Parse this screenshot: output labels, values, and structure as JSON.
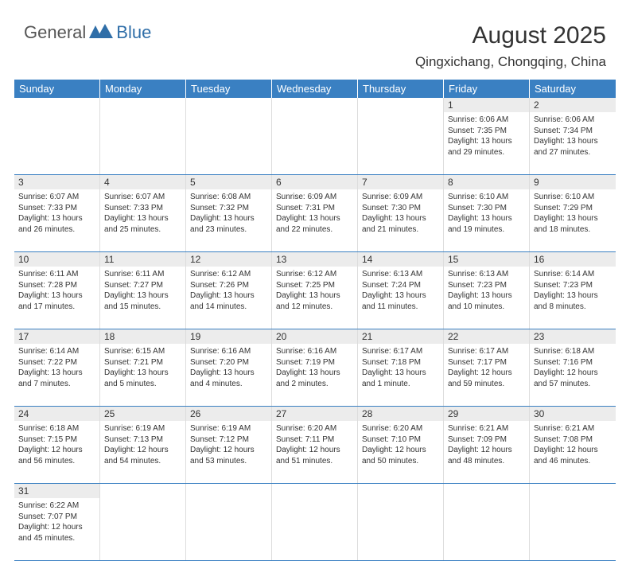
{
  "logo": {
    "general": "General",
    "blue": "Blue"
  },
  "colors": {
    "header_bg": "#3a80c2",
    "header_text": "#ffffff",
    "daynum_bg": "#ececec",
    "cell_text": "#333333",
    "divider": "#dddddd",
    "week_divider": "#3a80c2",
    "logo_general": "#555555",
    "logo_blue": "#2f6ea8"
  },
  "title": "August 2025",
  "location": "Qingxichang, Chongqing, China",
  "day_headers": [
    "Sunday",
    "Monday",
    "Tuesday",
    "Wednesday",
    "Thursday",
    "Friday",
    "Saturday"
  ],
  "weeks": [
    [
      {
        "n": "",
        "sr": "",
        "ss": "",
        "dl": ""
      },
      {
        "n": "",
        "sr": "",
        "ss": "",
        "dl": ""
      },
      {
        "n": "",
        "sr": "",
        "ss": "",
        "dl": ""
      },
      {
        "n": "",
        "sr": "",
        "ss": "",
        "dl": ""
      },
      {
        "n": "",
        "sr": "",
        "ss": "",
        "dl": ""
      },
      {
        "n": "1",
        "sr": "Sunrise: 6:06 AM",
        "ss": "Sunset: 7:35 PM",
        "dl": "Daylight: 13 hours and 29 minutes."
      },
      {
        "n": "2",
        "sr": "Sunrise: 6:06 AM",
        "ss": "Sunset: 7:34 PM",
        "dl": "Daylight: 13 hours and 27 minutes."
      }
    ],
    [
      {
        "n": "3",
        "sr": "Sunrise: 6:07 AM",
        "ss": "Sunset: 7:33 PM",
        "dl": "Daylight: 13 hours and 26 minutes."
      },
      {
        "n": "4",
        "sr": "Sunrise: 6:07 AM",
        "ss": "Sunset: 7:33 PM",
        "dl": "Daylight: 13 hours and 25 minutes."
      },
      {
        "n": "5",
        "sr": "Sunrise: 6:08 AM",
        "ss": "Sunset: 7:32 PM",
        "dl": "Daylight: 13 hours and 23 minutes."
      },
      {
        "n": "6",
        "sr": "Sunrise: 6:09 AM",
        "ss": "Sunset: 7:31 PM",
        "dl": "Daylight: 13 hours and 22 minutes."
      },
      {
        "n": "7",
        "sr": "Sunrise: 6:09 AM",
        "ss": "Sunset: 7:30 PM",
        "dl": "Daylight: 13 hours and 21 minutes."
      },
      {
        "n": "8",
        "sr": "Sunrise: 6:10 AM",
        "ss": "Sunset: 7:30 PM",
        "dl": "Daylight: 13 hours and 19 minutes."
      },
      {
        "n": "9",
        "sr": "Sunrise: 6:10 AM",
        "ss": "Sunset: 7:29 PM",
        "dl": "Daylight: 13 hours and 18 minutes."
      }
    ],
    [
      {
        "n": "10",
        "sr": "Sunrise: 6:11 AM",
        "ss": "Sunset: 7:28 PM",
        "dl": "Daylight: 13 hours and 17 minutes."
      },
      {
        "n": "11",
        "sr": "Sunrise: 6:11 AM",
        "ss": "Sunset: 7:27 PM",
        "dl": "Daylight: 13 hours and 15 minutes."
      },
      {
        "n": "12",
        "sr": "Sunrise: 6:12 AM",
        "ss": "Sunset: 7:26 PM",
        "dl": "Daylight: 13 hours and 14 minutes."
      },
      {
        "n": "13",
        "sr": "Sunrise: 6:12 AM",
        "ss": "Sunset: 7:25 PM",
        "dl": "Daylight: 13 hours and 12 minutes."
      },
      {
        "n": "14",
        "sr": "Sunrise: 6:13 AM",
        "ss": "Sunset: 7:24 PM",
        "dl": "Daylight: 13 hours and 11 minutes."
      },
      {
        "n": "15",
        "sr": "Sunrise: 6:13 AM",
        "ss": "Sunset: 7:23 PM",
        "dl": "Daylight: 13 hours and 10 minutes."
      },
      {
        "n": "16",
        "sr": "Sunrise: 6:14 AM",
        "ss": "Sunset: 7:23 PM",
        "dl": "Daylight: 13 hours and 8 minutes."
      }
    ],
    [
      {
        "n": "17",
        "sr": "Sunrise: 6:14 AM",
        "ss": "Sunset: 7:22 PM",
        "dl": "Daylight: 13 hours and 7 minutes."
      },
      {
        "n": "18",
        "sr": "Sunrise: 6:15 AM",
        "ss": "Sunset: 7:21 PM",
        "dl": "Daylight: 13 hours and 5 minutes."
      },
      {
        "n": "19",
        "sr": "Sunrise: 6:16 AM",
        "ss": "Sunset: 7:20 PM",
        "dl": "Daylight: 13 hours and 4 minutes."
      },
      {
        "n": "20",
        "sr": "Sunrise: 6:16 AM",
        "ss": "Sunset: 7:19 PM",
        "dl": "Daylight: 13 hours and 2 minutes."
      },
      {
        "n": "21",
        "sr": "Sunrise: 6:17 AM",
        "ss": "Sunset: 7:18 PM",
        "dl": "Daylight: 13 hours and 1 minute."
      },
      {
        "n": "22",
        "sr": "Sunrise: 6:17 AM",
        "ss": "Sunset: 7:17 PM",
        "dl": "Daylight: 12 hours and 59 minutes."
      },
      {
        "n": "23",
        "sr": "Sunrise: 6:18 AM",
        "ss": "Sunset: 7:16 PM",
        "dl": "Daylight: 12 hours and 57 minutes."
      }
    ],
    [
      {
        "n": "24",
        "sr": "Sunrise: 6:18 AM",
        "ss": "Sunset: 7:15 PM",
        "dl": "Daylight: 12 hours and 56 minutes."
      },
      {
        "n": "25",
        "sr": "Sunrise: 6:19 AM",
        "ss": "Sunset: 7:13 PM",
        "dl": "Daylight: 12 hours and 54 minutes."
      },
      {
        "n": "26",
        "sr": "Sunrise: 6:19 AM",
        "ss": "Sunset: 7:12 PM",
        "dl": "Daylight: 12 hours and 53 minutes."
      },
      {
        "n": "27",
        "sr": "Sunrise: 6:20 AM",
        "ss": "Sunset: 7:11 PM",
        "dl": "Daylight: 12 hours and 51 minutes."
      },
      {
        "n": "28",
        "sr": "Sunrise: 6:20 AM",
        "ss": "Sunset: 7:10 PM",
        "dl": "Daylight: 12 hours and 50 minutes."
      },
      {
        "n": "29",
        "sr": "Sunrise: 6:21 AM",
        "ss": "Sunset: 7:09 PM",
        "dl": "Daylight: 12 hours and 48 minutes."
      },
      {
        "n": "30",
        "sr": "Sunrise: 6:21 AM",
        "ss": "Sunset: 7:08 PM",
        "dl": "Daylight: 12 hours and 46 minutes."
      }
    ],
    [
      {
        "n": "31",
        "sr": "Sunrise: 6:22 AM",
        "ss": "Sunset: 7:07 PM",
        "dl": "Daylight: 12 hours and 45 minutes."
      },
      {
        "n": "",
        "sr": "",
        "ss": "",
        "dl": ""
      },
      {
        "n": "",
        "sr": "",
        "ss": "",
        "dl": ""
      },
      {
        "n": "",
        "sr": "",
        "ss": "",
        "dl": ""
      },
      {
        "n": "",
        "sr": "",
        "ss": "",
        "dl": ""
      },
      {
        "n": "",
        "sr": "",
        "ss": "",
        "dl": ""
      },
      {
        "n": "",
        "sr": "",
        "ss": "",
        "dl": ""
      }
    ]
  ]
}
